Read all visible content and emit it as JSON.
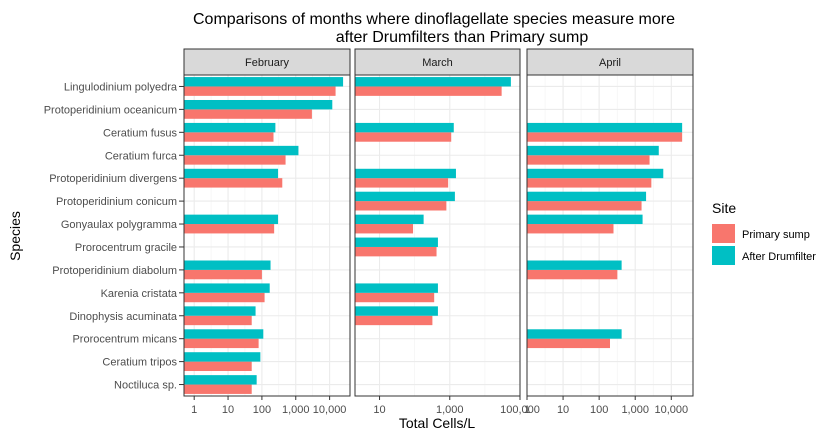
{
  "chart_data": {
    "type": "bar",
    "orientation": "horizontal",
    "title_lines": [
      "Comparisons of months where dinoflagellate species measure more",
      "after Drumfilters than Primary sump"
    ],
    "xlabel": "Total Cells/L",
    "ylabel": "Species",
    "x_scale": "log10",
    "grid": true,
    "species": [
      "Lingulodinium polyedra",
      "Protoperidinium oceanicum",
      "Ceratium fusus",
      "Ceratium furca",
      "Protoperidinium divergens",
      "Protoperidinium conicum",
      "Gonyaulax polygramma",
      "Prorocentrum gracile",
      "Protoperidinium diabolum",
      "Karenia cristata",
      "Dinophysis acuminata",
      "Prorocentrum micans",
      "Ceratium tripos",
      "Noctiluca sp."
    ],
    "legend": {
      "title": "Site",
      "position": "right",
      "entries": [
        {
          "label": "Primary sump",
          "color": "#F8766D"
        },
        {
          "label": "After Drumfilter",
          "color": "#00BFC4"
        }
      ]
    },
    "panels": [
      {
        "label": "February",
        "xlim": [
          0.5,
          40000
        ],
        "tick_values": [
          1,
          10,
          100,
          1000,
          10000
        ],
        "tick_labels": [
          "1",
          "10",
          "100",
          "1,000",
          "10,000"
        ],
        "series": [
          {
            "name": "Primary sump",
            "values": [
              15000,
              3000,
              220,
              500,
              400,
              null,
              230,
              null,
              100,
              120,
              50,
              80,
              50,
              50
            ]
          },
          {
            "name": "After Drumfilter",
            "values": [
              25000,
              12000,
              250,
              1200,
              300,
              null,
              300,
              null,
              180,
              170,
              65,
              110,
              90,
              70
            ]
          }
        ]
      },
      {
        "label": "March",
        "xlim": [
          2,
          100000
        ],
        "tick_values": [
          10,
          1000,
          100000
        ],
        "tick_labels": [
          "10",
          "1,000",
          "100,000"
        ],
        "series": [
          {
            "name": "Primary sump",
            "values": [
              30000,
              null,
              1100,
              null,
              900,
              800,
              90,
              420,
              null,
              360,
              320,
              null,
              null,
              null
            ]
          },
          {
            "name": "After Drumfilter",
            "values": [
              55000,
              null,
              1300,
              null,
              1500,
              1400,
              180,
              460,
              null,
              460,
              460,
              null,
              null,
              null
            ]
          }
        ]
      },
      {
        "label": "April",
        "xlim": [
          1,
          40000
        ],
        "tick_values": [
          1,
          10,
          100,
          1000,
          10000
        ],
        "tick_labels": [
          "1",
          "10",
          "100",
          "1,000",
          "10,000"
        ],
        "series": [
          {
            "name": "Primary sump",
            "values": [
              null,
              null,
              20000,
              2500,
              2800,
              1500,
              250,
              null,
              320,
              null,
              null,
              200,
              null,
              null
            ]
          },
          {
            "name": "After Drumfilter",
            "values": [
              null,
              null,
              20000,
              4500,
              6000,
              2000,
              1600,
              null,
              420,
              null,
              null,
              420,
              null,
              null
            ]
          }
        ]
      }
    ]
  }
}
